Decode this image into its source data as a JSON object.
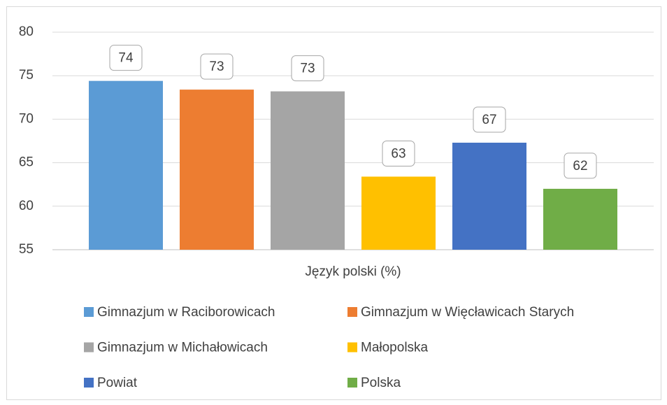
{
  "chart_data": {
    "type": "bar",
    "categories": [
      "Język polski (%)"
    ],
    "series": [
      {
        "name": "Gimnazjum w Raciborowicach",
        "color": "#5b9bd5",
        "values": [
          74.4
        ],
        "value_labels": [
          "74"
        ]
      },
      {
        "name": "Gimnazjum w Więcławicach Starych",
        "color": "#ed7d31",
        "values": [
          73.4
        ],
        "value_labels": [
          "73"
        ]
      },
      {
        "name": "Gimnazjum w Michałowicach",
        "color": "#a5a5a5",
        "values": [
          73.2
        ],
        "value_labels": [
          "73"
        ]
      },
      {
        "name": "Małopolska",
        "color": "#ffc000",
        "values": [
          63.4
        ],
        "value_labels": [
          "63"
        ]
      },
      {
        "name": "Powiat",
        "color": "#4472c4",
        "values": [
          67.3
        ],
        "value_labels": [
          "67"
        ]
      },
      {
        "name": "Polska",
        "color": "#70ad47",
        "values": [
          62.0
        ],
        "value_labels": [
          "62"
        ]
      }
    ],
    "ylim": [
      55,
      80
    ],
    "yticks": [
      55,
      60,
      65,
      70,
      75,
      80
    ],
    "grid": true,
    "legend": "bottom"
  }
}
